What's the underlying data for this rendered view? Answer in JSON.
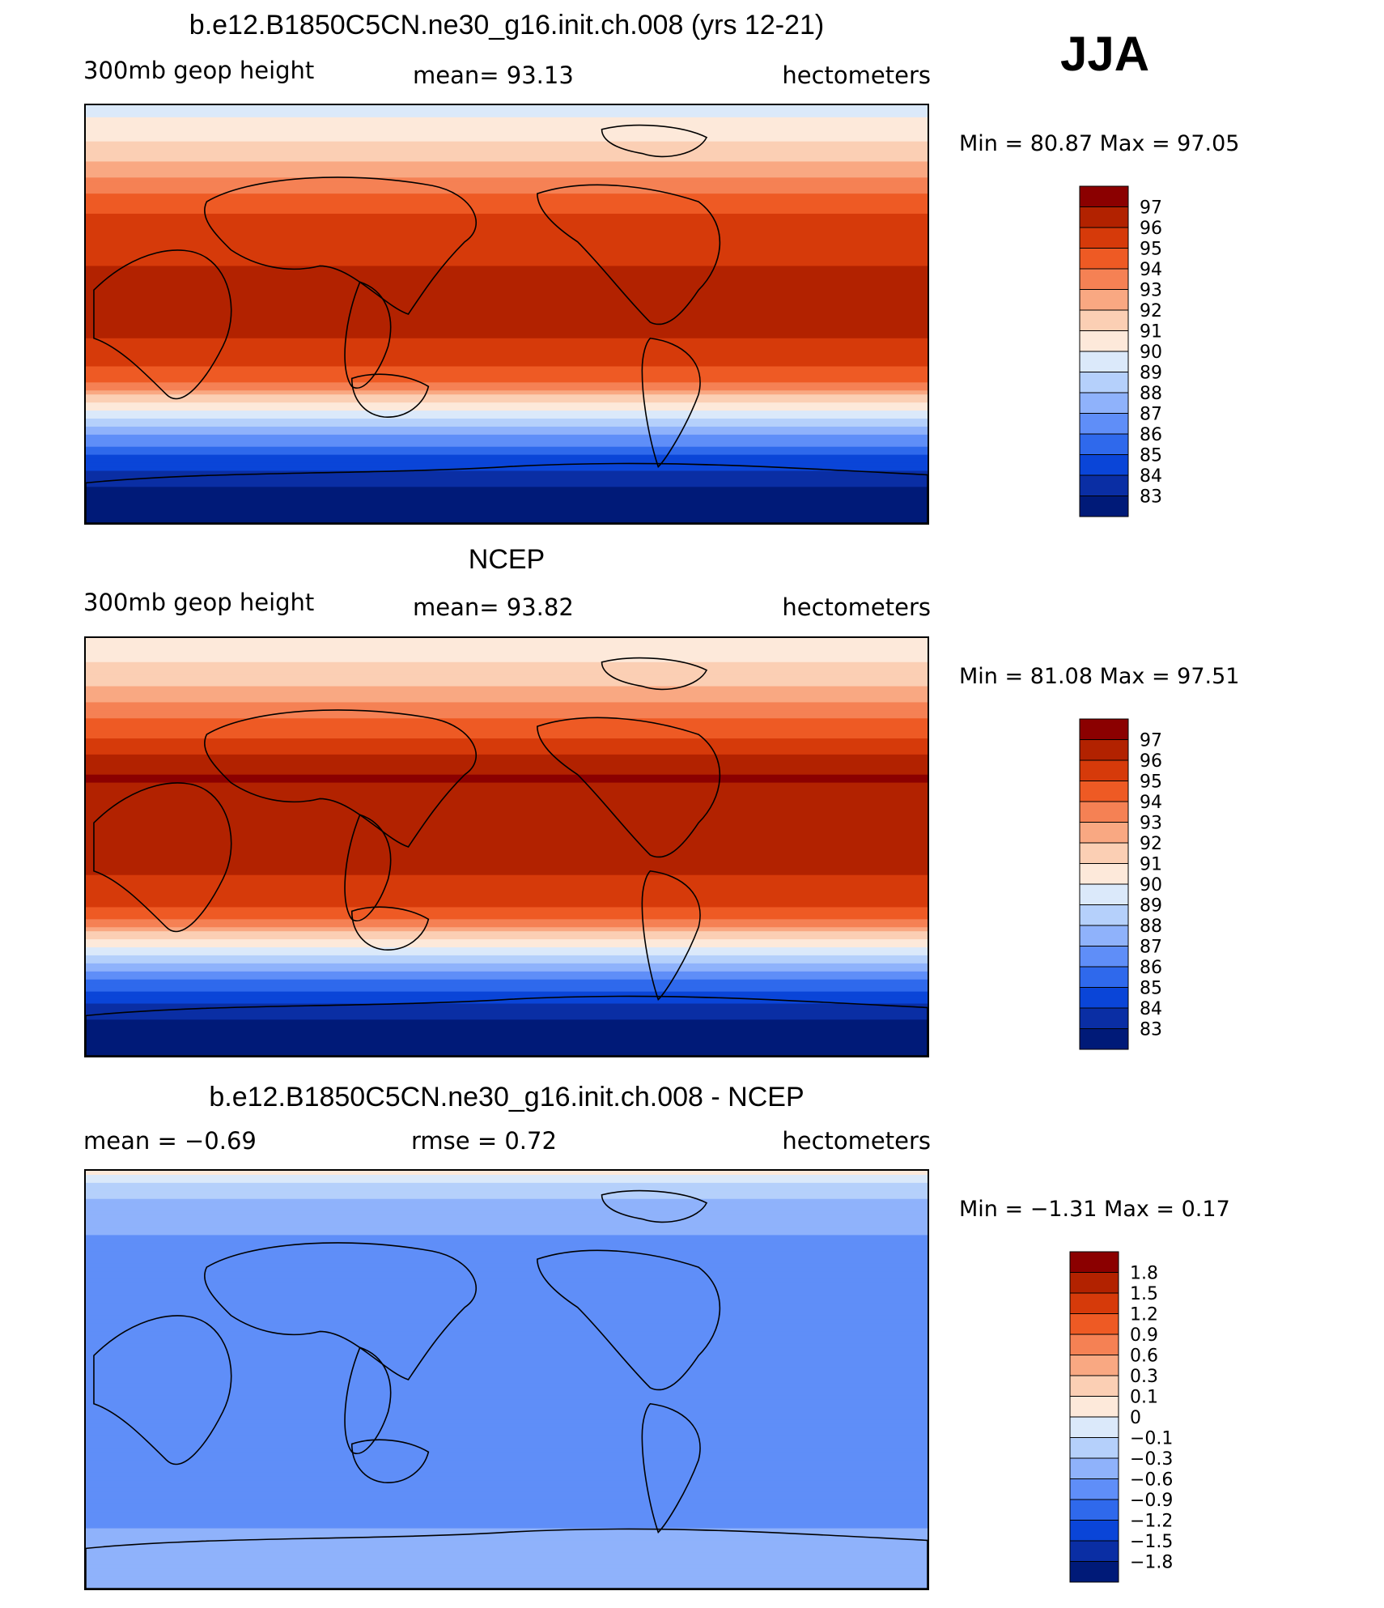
{
  "season": "JJA",
  "panels": [
    {
      "title": "b.e12.B1850C5CN.ne30_g16.init.ch.008 (yrs 12-21)",
      "left_label": "300mb geop height",
      "center_label": "mean=  93.13",
      "right_label": "hectometers",
      "min_max": "Min =   80.87 Max =   97.05",
      "colorbar": {
        "labels": [
          "97",
          "96",
          "95",
          "94",
          "93",
          "92",
          "91",
          "90",
          "89",
          "88",
          "87",
          "86",
          "85",
          "84",
          "83"
        ],
        "colors": [
          "#8b0000",
          "#b22200",
          "#d63a0a",
          "#ee5a24",
          "#f58154",
          "#f9a882",
          "#fbcfb4",
          "#fde9da",
          "#dbe9fa",
          "#b5d0fb",
          "#8fb2fb",
          "#5f8ef8",
          "#2f69ec",
          "#0a45d8",
          "#0a2ea4",
          "#001a78"
        ]
      },
      "field": {
        "bands": [
          {
            "lat": 90,
            "value": 89.5
          },
          {
            "lat": 80,
            "value": 90.5
          },
          {
            "lat": 70,
            "value": 91.5
          },
          {
            "lat": 60,
            "value": 92.8
          },
          {
            "lat": 50,
            "value": 94.3
          },
          {
            "lat": 40,
            "value": 95.3
          },
          {
            "lat": 30,
            "value": 95.8
          },
          {
            "lat": 10,
            "value": 96.2
          },
          {
            "lat": -10,
            "value": 96.0
          },
          {
            "lat": -20,
            "value": 95.4
          },
          {
            "lat": -30,
            "value": 93.8
          },
          {
            "lat": -40,
            "value": 90.5
          },
          {
            "lat": -50,
            "value": 87.5
          },
          {
            "lat": -60,
            "value": 85.2
          },
          {
            "lat": -70,
            "value": 83.5
          },
          {
            "lat": -90,
            "value": 81.0
          }
        ]
      }
    },
    {
      "title": "NCEP",
      "left_label": "300mb geop height",
      "center_label": "mean=  93.82",
      "right_label": "hectometers",
      "min_max": "Min =   81.08 Max =   97.51",
      "colorbar": {
        "labels": [
          "97",
          "96",
          "95",
          "94",
          "93",
          "92",
          "91",
          "90",
          "89",
          "88",
          "87",
          "86",
          "85",
          "84",
          "83"
        ],
        "colors": [
          "#8b0000",
          "#b22200",
          "#d63a0a",
          "#ee5a24",
          "#f58154",
          "#f9a882",
          "#fbcfb4",
          "#fde9da",
          "#dbe9fa",
          "#b5d0fb",
          "#8fb2fb",
          "#5f8ef8",
          "#2f69ec",
          "#0a45d8",
          "#0a2ea4",
          "#001a78"
        ]
      },
      "field": {
        "bands": [
          {
            "lat": 90,
            "value": 90.2
          },
          {
            "lat": 80,
            "value": 91.0
          },
          {
            "lat": 70,
            "value": 92.0
          },
          {
            "lat": 60,
            "value": 93.3
          },
          {
            "lat": 50,
            "value": 94.6
          },
          {
            "lat": 40,
            "value": 95.9
          },
          {
            "lat": 30,
            "value": 97.1
          },
          {
            "lat": 20,
            "value": 96.6
          },
          {
            "lat": 0,
            "value": 96.3
          },
          {
            "lat": -20,
            "value": 95.8
          },
          {
            "lat": -30,
            "value": 94.3
          },
          {
            "lat": -40,
            "value": 91.0
          },
          {
            "lat": -50,
            "value": 87.8
          },
          {
            "lat": -60,
            "value": 85.3
          },
          {
            "lat": -70,
            "value": 83.4
          },
          {
            "lat": -90,
            "value": 81.2
          }
        ]
      }
    },
    {
      "title": "b.e12.B1850C5CN.ne30_g16.init.ch.008 - NCEP",
      "left_label": "mean =   −0.69",
      "center_label": "rmse =    0.72",
      "right_label": "hectometers",
      "min_max": "Min =   −1.31 Max =    0.17",
      "colorbar": {
        "labels": [
          "1.8",
          "1.5",
          "1.2",
          "0.9",
          "0.6",
          "0.3",
          "0.1",
          "0",
          "−0.1",
          "−0.3",
          "−0.6",
          "−0.9",
          "−1.2",
          "−1.5",
          "−1.8"
        ],
        "colors": [
          "#8b0000",
          "#b22200",
          "#d63a0a",
          "#ee5a24",
          "#f58154",
          "#f9a882",
          "#fbcfb4",
          "#fde9da",
          "#dbe9fa",
          "#b5d0fb",
          "#8fb2fb",
          "#5f8ef8",
          "#2f69ec",
          "#0a45d8",
          "#0a2ea4",
          "#001a78"
        ]
      },
      "field": {
        "bands": [
          {
            "lat": 90,
            "value": 0.05
          },
          {
            "lat": 82,
            "value": -0.2
          },
          {
            "lat": 70,
            "value": -0.5
          },
          {
            "lat": 55,
            "value": -0.7
          },
          {
            "lat": 35,
            "value": -0.6
          },
          {
            "lat": 15,
            "value": -0.7
          },
          {
            "lat": 0,
            "value": -0.65
          },
          {
            "lat": -20,
            "value": -0.7
          },
          {
            "lat": -40,
            "value": -0.8
          },
          {
            "lat": -55,
            "value": -0.75
          },
          {
            "lat": -70,
            "value": -0.5
          },
          {
            "lat": -90,
            "value": -0.3
          }
        ]
      }
    }
  ]
}
